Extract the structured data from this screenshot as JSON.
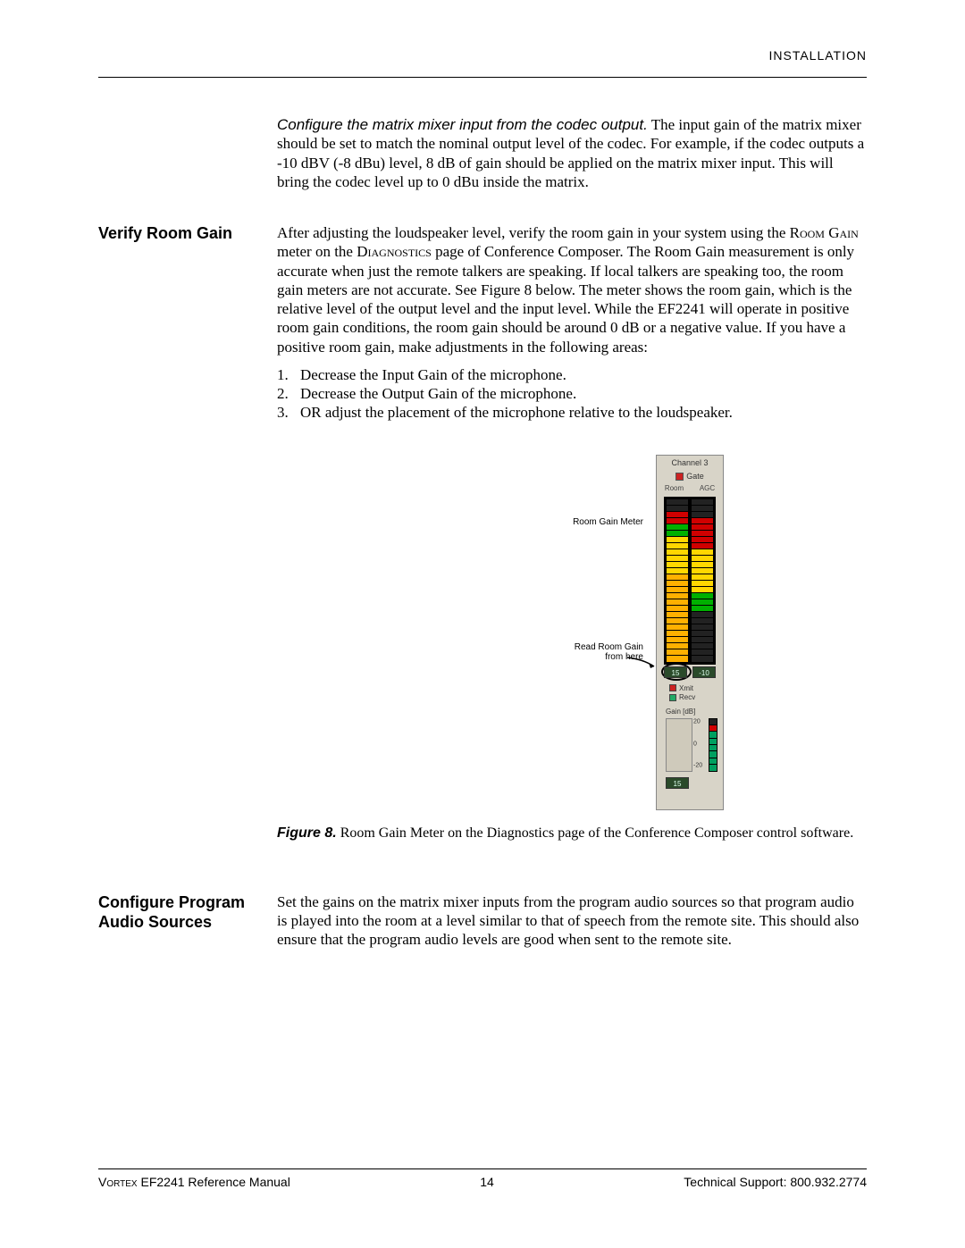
{
  "header": {
    "label": "INSTALLATION"
  },
  "s1": {
    "lead": "Configure the matrix mixer input from the codec output.",
    "body": " The input gain of the matrix mixer should be set to match the nominal output level of the codec. For example, if the codec outputs a -10 dBV (-8 dBu) level, 8 dB of gain should be applied on the matrix mixer input.  This will bring the codec level up to 0 dBu inside the matrix."
  },
  "s2": {
    "heading": "Verify Room Gain",
    "body_a": "After adjusting the loudspeaker level, verify the room gain in your system using the ",
    "sc1": "Room Gain",
    "body_b": " meter on the ",
    "sc2": "Diagnostics",
    "body_c": " page of Conference Composer.  The Room Gain measurement is only accurate when just the remote talkers are speaking.  If local talkers are speaking too, the room gain meters are not accurate.  See Figure 8 below.  The meter shows the room gain, which is the relative level of the output level and the input level.  While the EF2241 will operate in positive room gain conditions, the room gain should be around 0 dB or a negative value.  If you have a positive room gain, make adjustments in the following areas:",
    "list": [
      "Decrease the Input Gain of the microphone.",
      "Decrease the Output Gain of the microphone.",
      "OR adjust the placement of the microphone relative to the loudspeaker."
    ]
  },
  "figure": {
    "callout1": "Room Gain Meter",
    "callout2a": "Read Room Gain",
    "callout2b": "from here",
    "panel": {
      "title": "Channel 3",
      "gate": "Gate",
      "col_left": "Room",
      "col_right": "AGC",
      "val_left": "15",
      "val_right": "-10",
      "xmit": "Xmit",
      "recv": "Recv",
      "gain_label": "Gain [dB]",
      "ticks": [
        "20",
        "0",
        "-20"
      ],
      "bottom_val": "15",
      "bar_left_colors": [
        "#ffb000",
        "#ffb000",
        "#ffb000",
        "#ffb000",
        "#ffb000",
        "#ffb000",
        "#ffb000",
        "#ffb000",
        "#ffb000",
        "#ffb000",
        "#ffb000",
        "#ffb000",
        "#ffb000",
        "#ffb000",
        "#ffd700",
        "#ffd700",
        "#ffd700",
        "#ffd700",
        "#ffd700",
        "#ffd700",
        "#00b000",
        "#00b000",
        "#d00000",
        "#d00000",
        "#222222",
        "#222222"
      ],
      "bar_right_colors": [
        "#222222",
        "#222222",
        "#222222",
        "#222222",
        "#222222",
        "#222222",
        "#222222",
        "#222222",
        "#00b000",
        "#00b000",
        "#00b000",
        "#ffd700",
        "#ffd700",
        "#ffd700",
        "#ffd700",
        "#ffd700",
        "#ffd700",
        "#ffd700",
        "#d00000",
        "#d00000",
        "#d00000",
        "#d00000",
        "#d00000",
        "#222222",
        "#222222",
        "#222222"
      ],
      "mini_colors": [
        "#00a060",
        "#00a060",
        "#00a060",
        "#00a060",
        "#00a060",
        "#00a060",
        "#d00000",
        "#222222"
      ]
    },
    "caption_num": "Figure 8.",
    "caption": " Room Gain Meter on the Diagnostics page of the Conference Composer control software."
  },
  "s3": {
    "heading": "Configure Program Audio Sources",
    "body": "Set the gains on the matrix mixer inputs from the program audio sources so that program audio is played into the room at a level similar to that of speech from the remote site.  This should also ensure that the program audio levels are good when sent to the remote site."
  },
  "footer": {
    "left_sc": "Vortex",
    "left": " EF2241 Reference Manual",
    "page": "14",
    "right": "Technical Support: 800.932.2774"
  }
}
